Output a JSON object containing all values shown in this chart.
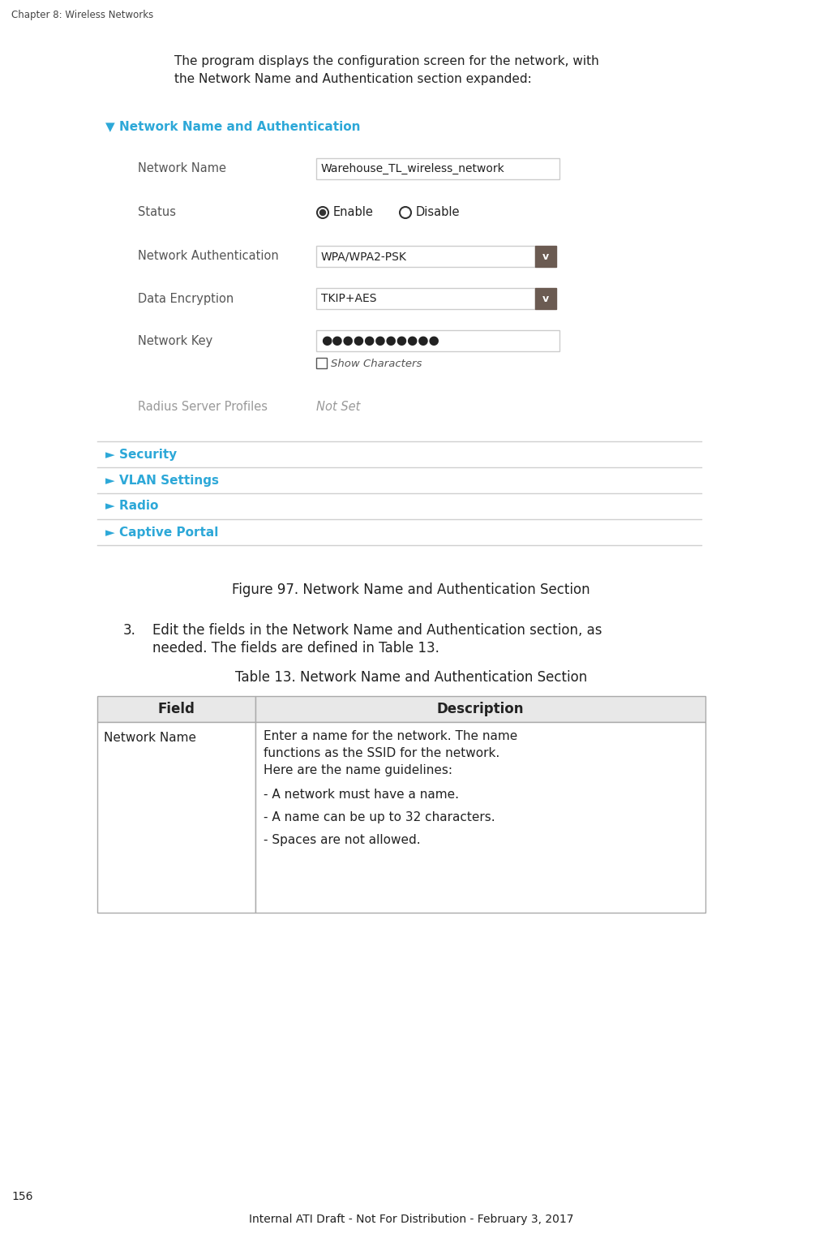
{
  "page_header": "Chapter 8: Wireless Networks",
  "page_number": "156",
  "footer": "Internal ATI Draft - Not For Distribution - February 3, 2017",
  "intro_line1": "The program displays the configuration screen for the network, with",
  "intro_line2": "the Network Name and Authentication section expanded:",
  "figure_caption": "Figure 97. Network Name and Authentication Section",
  "step3_line1": "Edit the fields in the Network Name and Authentication section, as",
  "step3_line2": "needed. The fields are defined in Table 13.",
  "table_title": "Table 13. Network Name and Authentication Section",
  "table_col1_header": "Field",
  "table_col2_header": "Description",
  "table_field": "Network Name",
  "table_desc_para": "Enter a name for the network. The name\nfunctions as the SSID for the network.\nHere are the name guidelines:",
  "table_desc_bullets": [
    "- A network must have a name.",
    "- A name can be up to 32 characters.",
    "- Spaces are not allowed."
  ],
  "section_header_color": "#2da8d8",
  "section_header_text": "▼ Network Name and Authentication",
  "collapsed_section_color": "#2da8d8",
  "collapsed_sections": [
    "► Security",
    "► VLAN Settings",
    "► Radio",
    "► Captive Portal"
  ],
  "network_name_value": "Warehouse_TL_wireless_network",
  "auth_value": "WPA/WPA2-PSK",
  "encrypt_value": "TKIP+AES",
  "password_dots": "●●●●●●●●●●●",
  "show_characters_label": "Show Characters",
  "radius_value": "Not Set",
  "bg_color": "#ffffff",
  "border_color": "#cccccc",
  "line_color": "#d0d0d0",
  "dropdown_btn_color": "#6b5b52",
  "text_color": "#222222",
  "label_color": "#555555",
  "readonly_label_color": "#999999",
  "readonly_value_color": "#999999",
  "table_header_bg": "#e8e8e8",
  "table_border_color": "#aaaaaa",
  "header_fontsize": 8.5,
  "body_fontsize": 11,
  "label_fontsize": 10.5,
  "small_fontsize": 9.5
}
